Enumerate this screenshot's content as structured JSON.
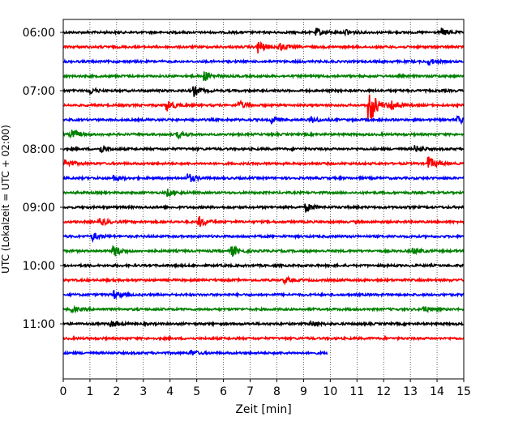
{
  "chart_data": {
    "type": "line",
    "title": "",
    "xlabel": "Zeit  [min]",
    "ylabel": "UTC (Lokalzeit = UTC + 02:00)",
    "xlim": [
      0,
      15
    ],
    "x_ticks": [
      0,
      1,
      2,
      3,
      4,
      5,
      6,
      7,
      8,
      9,
      10,
      11,
      12,
      13,
      14,
      15
    ],
    "y_tick_labels": [
      "06:00",
      "07:00",
      "08:00",
      "09:00",
      "10:00",
      "11:00"
    ],
    "grid": "vertical dotted",
    "legend": "none",
    "trace_interval_minutes": 15,
    "trace_colors": [
      "#000000",
      "#ff0000",
      "#0000ff",
      "#008000"
    ],
    "series": [
      {
        "start": "06:00",
        "duration_min": 15,
        "color": "#000000"
      },
      {
        "start": "06:15",
        "duration_min": 15,
        "color": "#ff0000"
      },
      {
        "start": "06:30",
        "duration_min": 15,
        "color": "#0000ff"
      },
      {
        "start": "06:45",
        "duration_min": 15,
        "color": "#008000"
      },
      {
        "start": "07:00",
        "duration_min": 15,
        "color": "#000000"
      },
      {
        "start": "07:15",
        "duration_min": 15,
        "color": "#ff0000"
      },
      {
        "start": "07:30",
        "duration_min": 15,
        "color": "#0000ff"
      },
      {
        "start": "07:45",
        "duration_min": 15,
        "color": "#008000"
      },
      {
        "start": "08:00",
        "duration_min": 15,
        "color": "#000000"
      },
      {
        "start": "08:15",
        "duration_min": 15,
        "color": "#ff0000"
      },
      {
        "start": "08:30",
        "duration_min": 15,
        "color": "#0000ff"
      },
      {
        "start": "08:45",
        "duration_min": 15,
        "color": "#008000"
      },
      {
        "start": "09:00",
        "duration_min": 15,
        "color": "#000000"
      },
      {
        "start": "09:15",
        "duration_min": 15,
        "color": "#ff0000"
      },
      {
        "start": "09:30",
        "duration_min": 15,
        "color": "#0000ff"
      },
      {
        "start": "09:45",
        "duration_min": 15,
        "color": "#008000"
      },
      {
        "start": "10:00",
        "duration_min": 15,
        "color": "#000000"
      },
      {
        "start": "10:15",
        "duration_min": 15,
        "color": "#ff0000"
      },
      {
        "start": "10:30",
        "duration_min": 15,
        "color": "#0000ff"
      },
      {
        "start": "10:45",
        "duration_min": 15,
        "color": "#008000"
      },
      {
        "start": "11:00",
        "duration_min": 15,
        "color": "#000000"
      },
      {
        "start": "11:15",
        "duration_min": 15,
        "color": "#ff0000"
      },
      {
        "start": "11:30",
        "duration_min": 9.9,
        "color": "#0000ff"
      }
    ],
    "events": [
      {
        "trace": "06:00",
        "minute": 9.5,
        "amplitude": 0.5
      },
      {
        "trace": "06:00",
        "minute": 10.6,
        "amplitude": 0.4
      },
      {
        "trace": "06:00",
        "minute": 14.2,
        "amplitude": 0.5
      },
      {
        "trace": "06:15",
        "minute": 7.3,
        "amplitude": 0.9
      },
      {
        "trace": "06:15",
        "minute": 8.1,
        "amplitude": 0.5
      },
      {
        "trace": "06:30",
        "minute": 13.7,
        "amplitude": 0.4
      },
      {
        "trace": "06:45",
        "minute": 5.3,
        "amplitude": 0.6
      },
      {
        "trace": "07:00",
        "minute": 4.9,
        "amplitude": 0.7
      },
      {
        "trace": "07:00",
        "minute": 1.0,
        "amplitude": 0.4
      },
      {
        "trace": "07:15",
        "minute": 3.9,
        "amplitude": 0.8
      },
      {
        "trace": "07:15",
        "minute": 6.6,
        "amplitude": 0.5
      },
      {
        "trace": "07:15",
        "minute": 11.45,
        "amplitude": 3.0
      },
      {
        "trace": "07:15",
        "minute": 12.3,
        "amplitude": 0.8
      },
      {
        "trace": "07:30",
        "minute": 7.8,
        "amplitude": 0.5
      },
      {
        "trace": "07:30",
        "minute": 9.3,
        "amplitude": 0.4
      },
      {
        "trace": "07:30",
        "minute": 14.8,
        "amplitude": 0.5
      },
      {
        "trace": "07:45",
        "minute": 0.3,
        "amplitude": 0.7
      },
      {
        "trace": "07:45",
        "minute": 4.3,
        "amplitude": 0.4
      },
      {
        "trace": "08:00",
        "minute": 1.4,
        "amplitude": 0.5
      },
      {
        "trace": "08:00",
        "minute": 13.2,
        "amplitude": 0.4
      },
      {
        "trace": "08:15",
        "minute": 13.7,
        "amplitude": 0.9
      },
      {
        "trace": "08:15",
        "minute": 0.1,
        "amplitude": 0.5
      },
      {
        "trace": "08:30",
        "minute": 4.7,
        "amplitude": 0.6
      },
      {
        "trace": "08:30",
        "minute": 1.9,
        "amplitude": 0.4
      },
      {
        "trace": "08:45",
        "minute": 3.9,
        "amplitude": 0.5
      },
      {
        "trace": "09:00",
        "minute": 9.1,
        "amplitude": 0.6
      },
      {
        "trace": "09:15",
        "minute": 5.1,
        "amplitude": 0.7
      },
      {
        "trace": "09:15",
        "minute": 1.4,
        "amplitude": 0.5
      },
      {
        "trace": "09:30",
        "minute": 1.1,
        "amplitude": 0.5
      },
      {
        "trace": "09:45",
        "minute": 1.9,
        "amplitude": 0.8
      },
      {
        "trace": "09:45",
        "minute": 6.3,
        "amplitude": 0.8
      },
      {
        "trace": "09:45",
        "minute": 13.1,
        "amplitude": 0.4
      },
      {
        "trace": "10:15",
        "minute": 8.3,
        "amplitude": 0.4
      },
      {
        "trace": "10:30",
        "minute": 1.9,
        "amplitude": 0.5
      },
      {
        "trace": "10:45",
        "minute": 0.3,
        "amplitude": 0.4
      },
      {
        "trace": "10:45",
        "minute": 13.5,
        "amplitude": 0.4
      },
      {
        "trace": "11:00",
        "minute": 9.3,
        "amplitude": 0.4
      },
      {
        "trace": "11:00",
        "minute": 1.8,
        "amplitude": 0.4
      },
      {
        "trace": "11:30",
        "minute": 4.8,
        "amplitude": 0.3
      }
    ]
  }
}
